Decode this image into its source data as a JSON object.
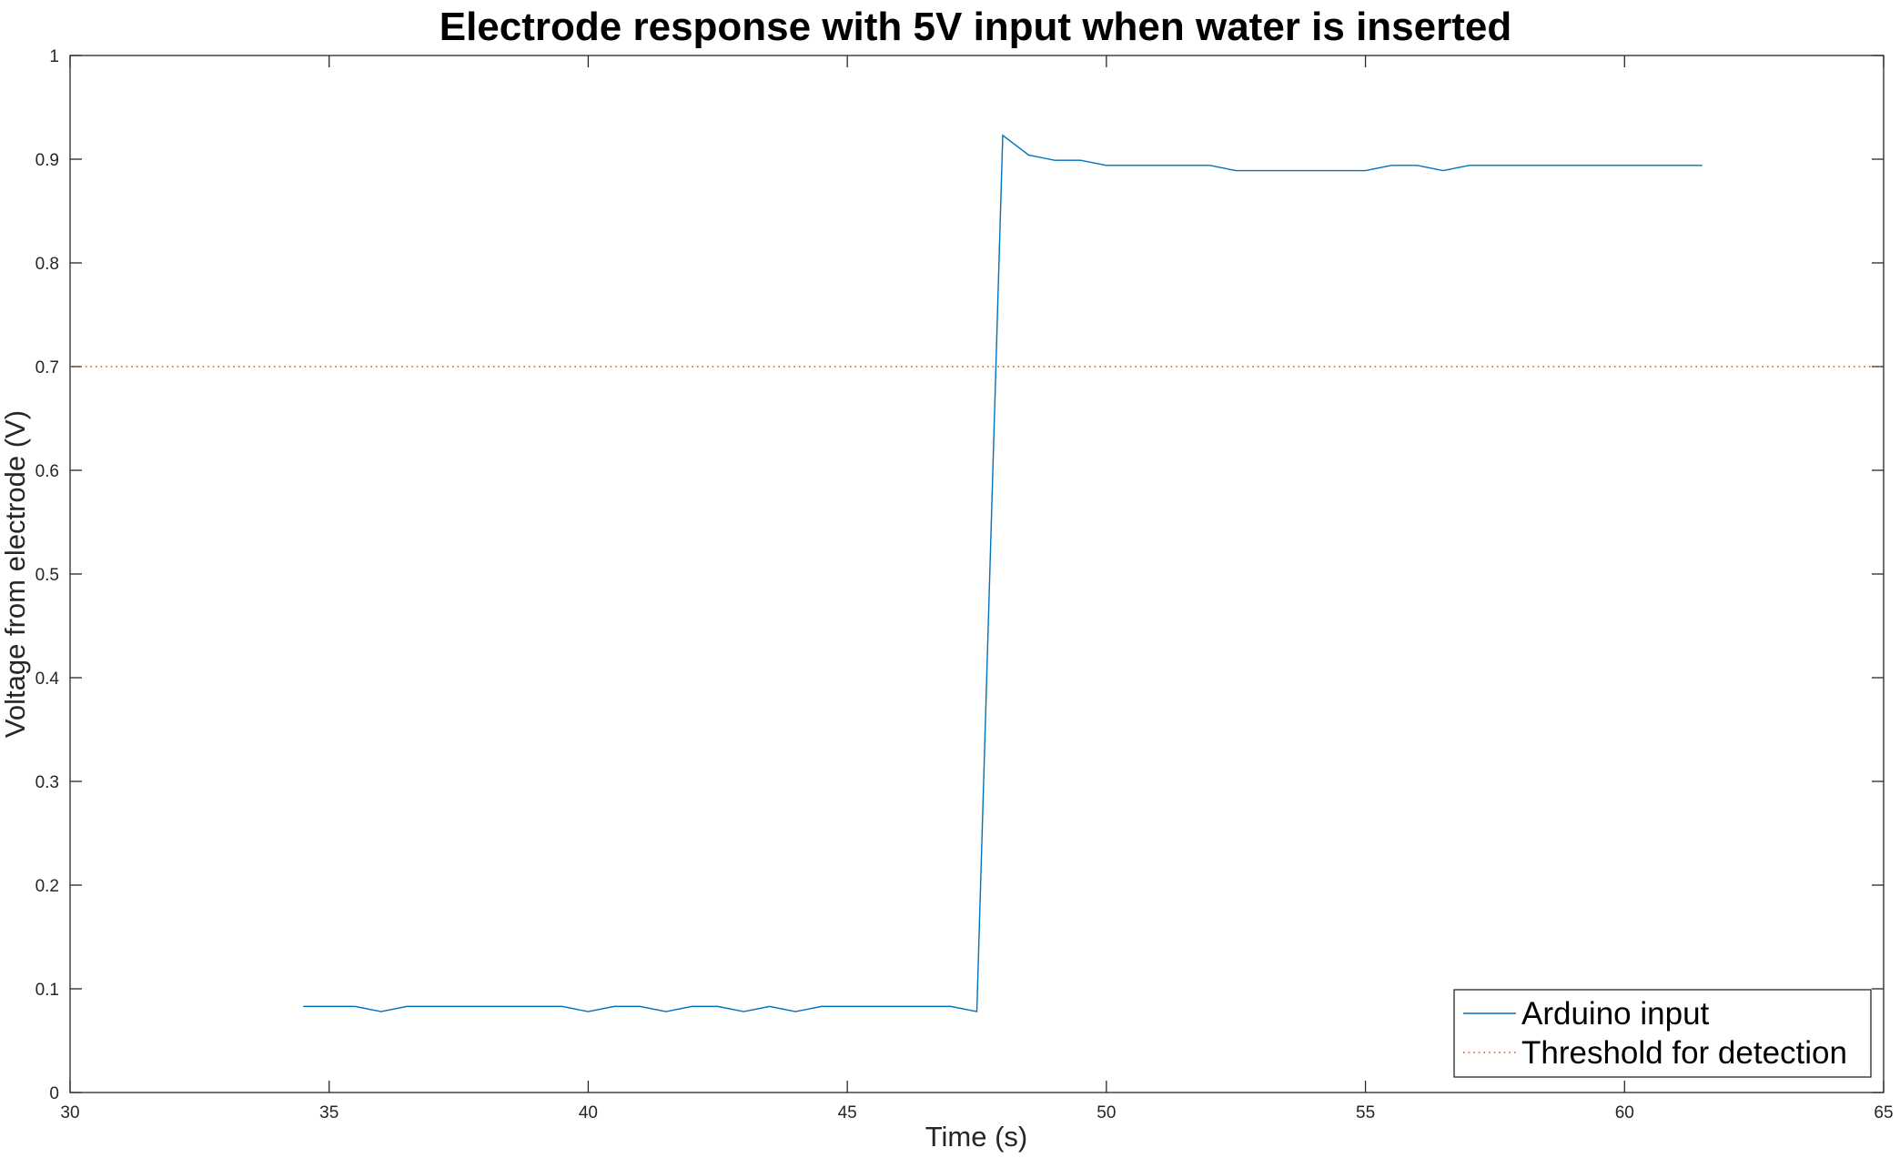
{
  "chart_data": {
    "type": "line",
    "title": "Electrode response with 5V input when water is inserted",
    "xlabel": "Time (s)",
    "ylabel": "Voltage from electrode (V)",
    "xlim": [
      30,
      65
    ],
    "ylim": [
      0,
      1
    ],
    "xticks": [
      "30",
      "35",
      "40",
      "45",
      "50",
      "55",
      "60",
      "65"
    ],
    "yticks": [
      "0",
      "0.1",
      "0.2",
      "0.3",
      "0.4",
      "0.5",
      "0.6",
      "0.7",
      "0.8",
      "0.9",
      "1"
    ],
    "grid": false,
    "box": true,
    "legend_position": "bottom-right",
    "series": [
      {
        "name": "Arduino input",
        "style": "solid",
        "color": "#0072BD",
        "x": [
          34.5,
          35,
          35.5,
          36,
          36.5,
          37,
          37.5,
          38,
          38.5,
          39,
          39.5,
          40,
          40.5,
          41,
          41.5,
          42,
          42.5,
          43,
          43.5,
          44,
          44.5,
          45,
          45.5,
          46,
          46.5,
          47,
          47.5,
          48,
          48.5,
          49,
          49.5,
          50,
          50.5,
          51,
          51.5,
          52,
          52.5,
          53,
          53.5,
          54,
          54.5,
          55,
          55.5,
          56,
          56.5,
          57,
          57.5,
          58,
          58.5,
          59,
          59.5,
          60,
          60.5,
          61,
          61.5
        ],
        "y": [
          0.083,
          0.083,
          0.083,
          0.078,
          0.083,
          0.083,
          0.083,
          0.083,
          0.083,
          0.083,
          0.083,
          0.078,
          0.083,
          0.083,
          0.078,
          0.083,
          0.083,
          0.078,
          0.083,
          0.078,
          0.083,
          0.083,
          0.083,
          0.083,
          0.083,
          0.083,
          0.078,
          0.923,
          0.904,
          0.899,
          0.899,
          0.894,
          0.894,
          0.894,
          0.894,
          0.894,
          0.889,
          0.889,
          0.889,
          0.889,
          0.889,
          0.889,
          0.894,
          0.894,
          0.889,
          0.894,
          0.894,
          0.894,
          0.894,
          0.894,
          0.894,
          0.894,
          0.894,
          0.894,
          0.894
        ]
      },
      {
        "name": "Threshold for detection",
        "style": "dotted",
        "color": "#D95319",
        "x": [
          30,
          65
        ],
        "y": [
          0.7,
          0.7
        ]
      }
    ]
  }
}
